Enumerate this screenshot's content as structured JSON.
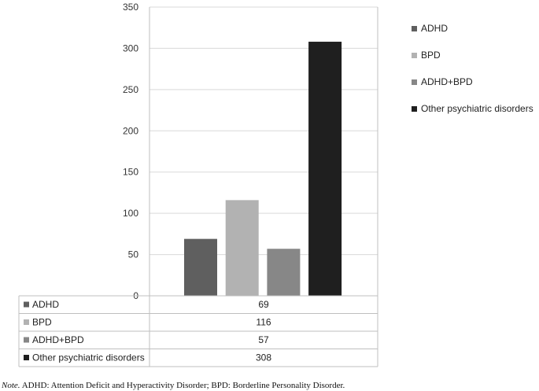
{
  "chart_data": {
    "type": "bar",
    "title": "",
    "xlabel": "",
    "ylabel": "",
    "ylim": [
      0,
      350
    ],
    "yticks": [
      0,
      50,
      100,
      150,
      200,
      250,
      300,
      350
    ],
    "grid": true,
    "legend_position": "right",
    "series": [
      {
        "name": "ADHD",
        "value": 69,
        "color": "#5f5f5f"
      },
      {
        "name": "BPD",
        "value": 116,
        "color": "#b2b2b2"
      },
      {
        "name": "ADHD+BPD",
        "value": 57,
        "color": "#878787"
      },
      {
        "name": "Other psychiatric disorders",
        "value": 308,
        "color": "#1f1f1f"
      }
    ],
    "data_table": true
  },
  "note": {
    "label": "Note.",
    "text": "ADHD: Attention Deficit and Hyperactivity Disorder; BPD: Borderline Personality Disorder."
  }
}
